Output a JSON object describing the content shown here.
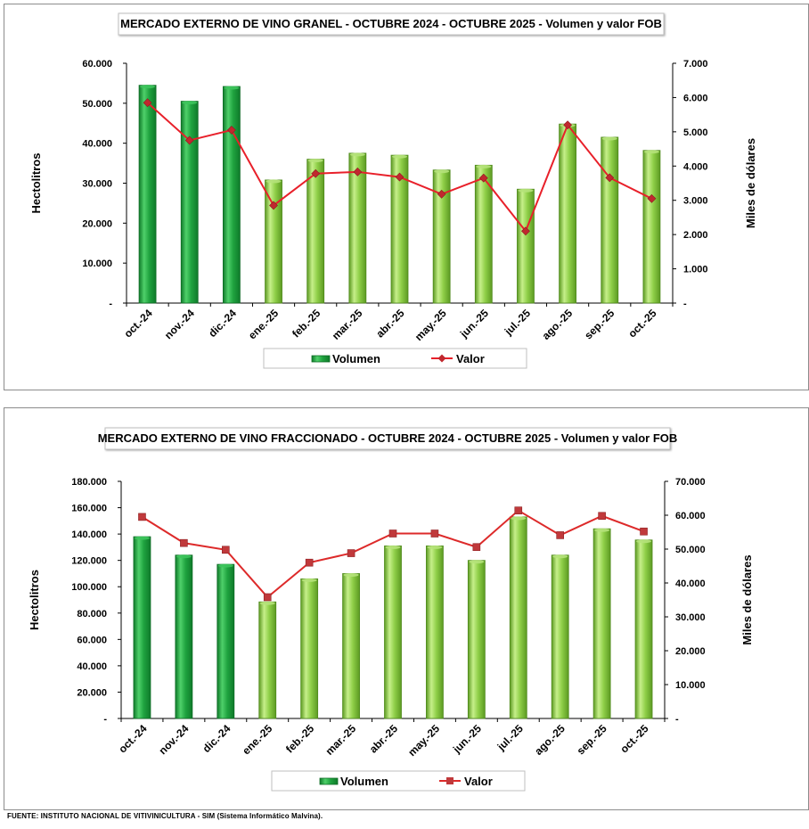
{
  "colors": {
    "bar_dark": "#1fa33f",
    "bar_light": "#8fcf48",
    "line1": "#e8202a",
    "marker1": "#c0282e",
    "line2": "#dd2a2a",
    "marker2": "#c0393b"
  },
  "chart_data": [
    {
      "type": "bar+line",
      "title": "MERCADO EXTERNO DE VINO GRANEL - OCTUBRE 2024 - OCTUBRE 2025 - Volumen y valor FOB",
      "ylabel": "Hectolitros",
      "y2label": "Miles de dólares",
      "categories": [
        "oct.-24",
        "nov.-24",
        "dic.-24",
        "ene.-25",
        "feb.-25",
        "mar.-25",
        "abr.-25",
        "may.-25",
        "jun.-25",
        "jul.-25",
        "ago.-25",
        "sep.-25",
        "oct.-25"
      ],
      "dark_count": 3,
      "ylim": [
        0,
        60000
      ],
      "y2lim": [
        0,
        7000
      ],
      "yticks": [
        "-",
        "10.000",
        "20.000",
        "30.000",
        "40.000",
        "50.000",
        "60.000"
      ],
      "y2ticks": [
        "-",
        "1.000",
        "2.000",
        "3.000",
        "4.000",
        "5.000",
        "6.000",
        "7.000"
      ],
      "series": [
        {
          "name": "Volumen",
          "kind": "bar",
          "axis": "left",
          "values": [
            54500,
            50500,
            54200,
            30800,
            36000,
            37500,
            37000,
            33300,
            34500,
            28500,
            44800,
            41500,
            38200
          ]
        },
        {
          "name": "Valor",
          "kind": "line",
          "axis": "right",
          "values": [
            5850,
            4750,
            5050,
            2850,
            3780,
            3830,
            3680,
            3180,
            3650,
            2100,
            5200,
            3660,
            3050
          ]
        }
      ],
      "legend": [
        "Volumen",
        "Valor"
      ],
      "marker": "diamond"
    },
    {
      "type": "bar+line",
      "title": "MERCADO EXTERNO DE VINO FRACCIONADO - OCTUBRE 2024 - OCTUBRE 2025 - Volumen y valor FOB",
      "ylabel": "Hectolitros",
      "y2label": "Miles de dólares",
      "categories": [
        "oct.-24",
        "nov.-24",
        "dic.-24",
        "ene.-25",
        "feb.-25",
        "mar.-25",
        "abr.-25",
        "may.-25",
        "jun.-25",
        "jul.-25",
        "ago.-25",
        "sep.-25",
        "oct.-25"
      ],
      "dark_count": 3,
      "ylim": [
        0,
        180000
      ],
      "y2lim": [
        0,
        70000
      ],
      "yticks": [
        "-",
        "20.000",
        "40.000",
        "60.000",
        "80.000",
        "100.000",
        "120.000",
        "140.000",
        "160.000",
        "180.000"
      ],
      "y2ticks": [
        "-",
        "10.000",
        "20.000",
        "30.000",
        "40.000",
        "50.000",
        "60.000",
        "70.000"
      ],
      "series": [
        {
          "name": "Volumen",
          "kind": "bar",
          "axis": "left",
          "values": [
            138000,
            124000,
            117000,
            88500,
            106000,
            110000,
            131000,
            131000,
            120000,
            153000,
            124000,
            144000,
            135500
          ]
        },
        {
          "name": "Valor",
          "kind": "line",
          "axis": "right",
          "values": [
            59500,
            51800,
            49800,
            35800,
            46000,
            48800,
            54600,
            54600,
            50600,
            61400,
            54100,
            59800,
            55200
          ]
        }
      ],
      "legend": [
        "Volumen",
        "Valor"
      ],
      "marker": "square"
    }
  ],
  "footer": {
    "source": "FUENTE: INSTITUTO NACIONAL DE VITIVINICULTURA - SIM (Sistema Informático Malvina)."
  }
}
